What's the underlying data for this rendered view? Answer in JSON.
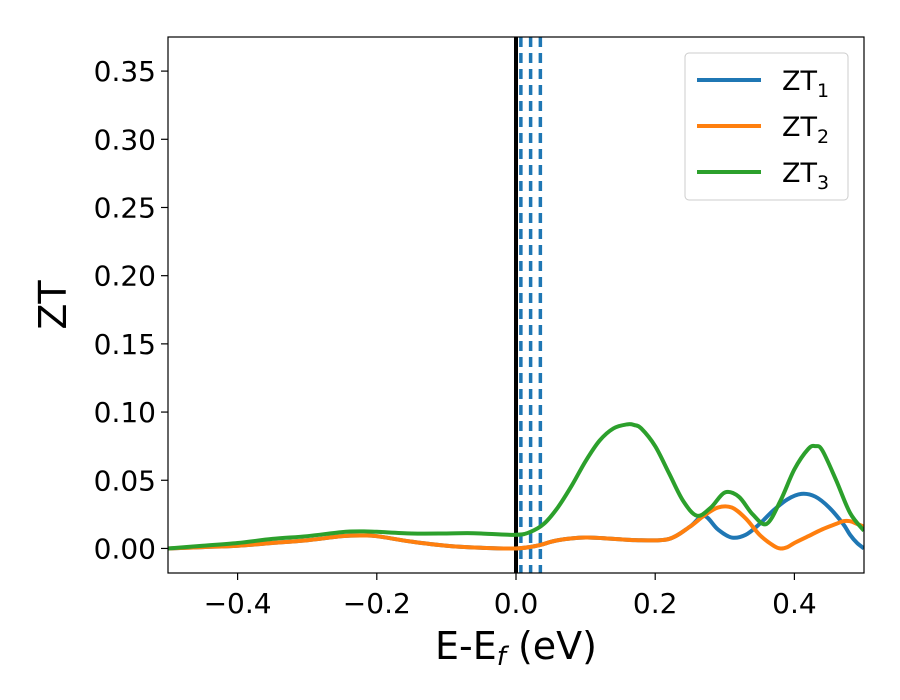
{
  "chart_data": {
    "type": "line",
    "xlabel": "E-E",
    "xlabel_sub": "f",
    "xlabel_unit": "(eV)",
    "ylabel": "ZT",
    "xlim": [
      -0.5,
      0.5
    ],
    "ylim": [
      -0.018,
      0.375
    ],
    "xticks": [
      -0.4,
      -0.2,
      0.0,
      0.2,
      0.4
    ],
    "xtick_labels": [
      "−0.4",
      "−0.2",
      "0.0",
      "0.2",
      "0.4"
    ],
    "yticks": [
      0.0,
      0.05,
      0.1,
      0.15,
      0.2,
      0.25,
      0.3,
      0.35
    ],
    "ytick_labels": [
      "0.00",
      "0.05",
      "0.10",
      "0.15",
      "0.20",
      "0.25",
      "0.30",
      "0.35"
    ],
    "grid": false,
    "legend_position": "top-right",
    "vertical_lines": [
      {
        "x": 0.0,
        "style": "solid",
        "color": "#000000"
      },
      {
        "x": 0.007,
        "style": "dashed",
        "color": "#1f77b4"
      },
      {
        "x": 0.021,
        "style": "dashed",
        "color": "#1f77b4"
      },
      {
        "x": 0.035,
        "style": "dashed",
        "color": "#1f77b4"
      }
    ],
    "series": [
      {
        "name": "ZT",
        "sub": "1",
        "color": "#1f77b4",
        "x": [
          -0.5,
          -0.45,
          -0.4,
          -0.35,
          -0.3,
          -0.25,
          -0.22,
          -0.2,
          -0.15,
          -0.1,
          -0.05,
          0.0,
          0.03,
          0.06,
          0.1,
          0.14,
          0.18,
          0.22,
          0.25,
          0.27,
          0.29,
          0.31,
          0.33,
          0.35,
          0.37,
          0.39,
          0.41,
          0.43,
          0.45,
          0.47,
          0.48,
          0.49,
          0.5
        ],
        "y": [
          0.0,
          0.001,
          0.002,
          0.004,
          0.006,
          0.009,
          0.0095,
          0.009,
          0.005,
          0.002,
          0.0005,
          0.0,
          0.002,
          0.006,
          0.008,
          0.007,
          0.006,
          0.007,
          0.016,
          0.024,
          0.014,
          0.008,
          0.01,
          0.018,
          0.028,
          0.036,
          0.04,
          0.038,
          0.03,
          0.018,
          0.01,
          0.004,
          0.0
        ]
      },
      {
        "name": "ZT",
        "sub": "2",
        "color": "#ff7f0e",
        "x": [
          -0.5,
          -0.45,
          -0.4,
          -0.35,
          -0.3,
          -0.25,
          -0.22,
          -0.2,
          -0.15,
          -0.1,
          -0.05,
          0.0,
          0.03,
          0.06,
          0.1,
          0.14,
          0.18,
          0.22,
          0.25,
          0.27,
          0.29,
          0.31,
          0.33,
          0.35,
          0.37,
          0.38,
          0.39,
          0.4,
          0.42,
          0.44,
          0.46,
          0.47,
          0.48,
          0.49,
          0.5
        ],
        "y": [
          0.0,
          0.001,
          0.002,
          0.004,
          0.006,
          0.009,
          0.0095,
          0.009,
          0.005,
          0.002,
          0.0005,
          0.0,
          0.002,
          0.006,
          0.008,
          0.007,
          0.006,
          0.007,
          0.016,
          0.024,
          0.03,
          0.03,
          0.022,
          0.01,
          0.002,
          0.0,
          0.001,
          0.004,
          0.009,
          0.014,
          0.018,
          0.02,
          0.02,
          0.018,
          0.016
        ]
      },
      {
        "name": "ZT",
        "sub": "3",
        "color": "#2ca02c",
        "x": [
          -0.5,
          -0.45,
          -0.4,
          -0.35,
          -0.3,
          -0.25,
          -0.22,
          -0.2,
          -0.15,
          -0.1,
          -0.07,
          -0.05,
          0.0,
          0.02,
          0.04,
          0.06,
          0.08,
          0.1,
          0.12,
          0.14,
          0.16,
          0.17,
          0.18,
          0.2,
          0.22,
          0.24,
          0.26,
          0.28,
          0.3,
          0.32,
          0.34,
          0.36,
          0.38,
          0.4,
          0.42,
          0.43,
          0.44,
          0.46,
          0.48,
          0.5
        ],
        "y": [
          0.0,
          0.002,
          0.004,
          0.007,
          0.009,
          0.012,
          0.0125,
          0.0122,
          0.011,
          0.011,
          0.0112,
          0.011,
          0.01,
          0.012,
          0.018,
          0.03,
          0.046,
          0.064,
          0.079,
          0.088,
          0.091,
          0.0905,
          0.088,
          0.075,
          0.055,
          0.035,
          0.024,
          0.03,
          0.041,
          0.038,
          0.025,
          0.018,
          0.035,
          0.058,
          0.073,
          0.075,
          0.072,
          0.05,
          0.026,
          0.013
        ]
      }
    ]
  }
}
